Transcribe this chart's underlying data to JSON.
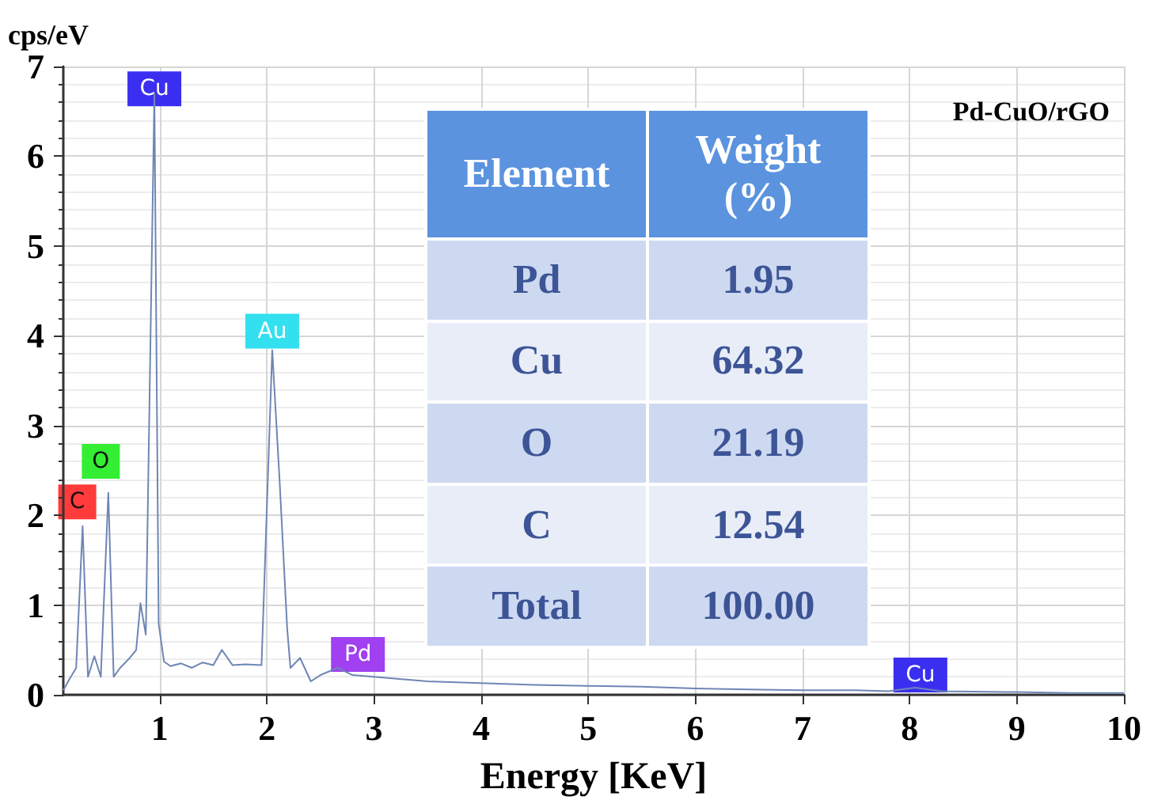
{
  "chart_data": [
    {
      "type": "line",
      "xlabel": "Energy [KeV]",
      "ylabel": "cps/eV",
      "xlim": [
        0.1,
        10
      ],
      "xticks": [
        1,
        2,
        3,
        4,
        5,
        6,
        7,
        8,
        9,
        10
      ],
      "ylim": [
        0,
        7
      ],
      "yticks": [
        0,
        1,
        2,
        3,
        4,
        5,
        6,
        7
      ],
      "grid": true,
      "series": [
        {
          "color": "#6e86b5",
          "x": [
            0.1,
            0.16,
            0.22,
            0.28,
            0.33,
            0.39,
            0.45,
            0.52,
            0.57,
            0.63,
            0.72,
            0.78,
            0.82,
            0.87,
            0.95,
            0.99,
            1.04,
            1.1,
            1.2,
            1.3,
            1.4,
            1.5,
            1.58,
            1.68,
            1.8,
            1.95,
            2.05,
            2.12,
            2.19,
            2.22,
            2.31,
            2.41,
            2.5,
            2.66,
            2.8,
            3.0,
            3.5,
            4.0,
            4.5,
            5.0,
            5.5,
            6.0,
            6.5,
            7.0,
            7.5,
            7.8,
            8.05,
            8.3,
            9.0,
            9.5,
            10.0
          ],
          "values": [
            0.05,
            0.18,
            0.3,
            1.88,
            0.2,
            0.43,
            0.2,
            2.25,
            0.2,
            0.3,
            0.41,
            0.5,
            1.02,
            0.67,
            6.7,
            0.79,
            0.37,
            0.32,
            0.35,
            0.3,
            0.36,
            0.33,
            0.5,
            0.33,
            0.34,
            0.33,
            3.84,
            2.36,
            0.73,
            0.3,
            0.41,
            0.15,
            0.22,
            0.3,
            0.22,
            0.2,
            0.15,
            0.13,
            0.11,
            0.1,
            0.09,
            0.07,
            0.06,
            0.05,
            0.05,
            0.04,
            0.08,
            0.04,
            0.03,
            0.02,
            0.02
          ]
        }
      ],
      "annotations": [
        {
          "text": "C",
          "x": 0.23,
          "y": 2.15
        },
        {
          "text": "O",
          "x": 0.45,
          "y": 2.6
        },
        {
          "text": "Cu",
          "x": 0.95,
          "y": 6.75
        },
        {
          "text": "Au",
          "x": 2.05,
          "y": 4.05
        },
        {
          "text": "Pd",
          "x": 2.85,
          "y": 0.45
        },
        {
          "text": "Cu",
          "x": 8.1,
          "y": 0.22
        },
        "Pd-CuO/rGO"
      ]
    },
    {
      "type": "other",
      "xlabel": "Element",
      "ylabel": "Weight (%)",
      "categories": [
        "Pd",
        "Cu",
        "O",
        "C",
        "Total"
      ],
      "value_labels": [
        "1.95",
        "64.32",
        "21.19",
        "12.54",
        "100.00"
      ]
    }
  ]
}
